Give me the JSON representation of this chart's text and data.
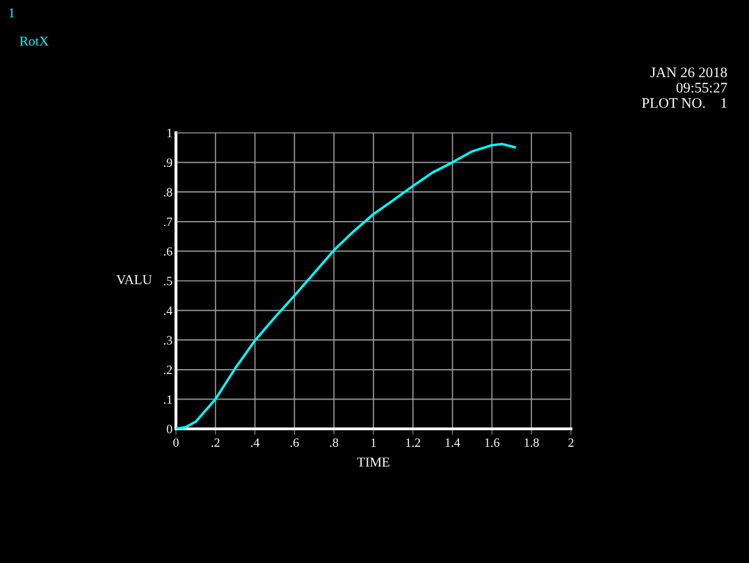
{
  "chart_data": {
    "type": "line",
    "xlabel": "TIME",
    "ylabel": "VALU",
    "x": [
      0,
      0.05,
      0.1,
      0.2,
      0.3,
      0.4,
      0.5,
      0.6,
      0.7,
      0.8,
      0.9,
      1.0,
      1.1,
      1.2,
      1.3,
      1.4,
      1.5,
      1.6,
      1.65,
      1.715
    ],
    "series": [
      {
        "name": "RotX",
        "color": "#00ffff",
        "values": [
          0,
          0.006,
          0.024,
          0.1,
          0.204,
          0.298,
          0.376,
          0.45,
          0.526,
          0.603,
          0.667,
          0.725,
          0.772,
          0.82,
          0.866,
          0.9,
          0.937,
          0.958,
          0.962,
          0.951
        ]
      }
    ],
    "xlim": [
      0,
      2
    ],
    "ylim": [
      0,
      1
    ],
    "xticks": [
      0,
      {
        "value": 0.2,
        "label": ".2"
      },
      {
        "value": 0.4,
        "label": ".4"
      },
      {
        "value": 0.6,
        "label": ".6"
      },
      {
        "value": 0.8,
        "label": ".8"
      },
      1,
      1.2,
      1.4,
      1.6,
      1.8,
      2
    ],
    "yticks": [
      0,
      {
        "value": 0.1,
        "label": ".1"
      },
      {
        "value": 0.2,
        "label": ".2"
      },
      {
        "value": 0.3,
        "label": ".3"
      },
      {
        "value": 0.4,
        "label": ".4"
      },
      {
        "value": 0.5,
        "label": ".5"
      },
      {
        "value": 0.6,
        "label": ".6"
      },
      {
        "value": 0.7,
        "label": ".7"
      },
      {
        "value": 0.8,
        "label": ".8"
      },
      {
        "value": 0.9,
        "label": ".9"
      },
      1
    ],
    "grid": true,
    "legend": "top left",
    "marker": "none",
    "line_style": "solid",
    "annotations": [
      "1",
      "JAN 26 2018",
      "09:55:27",
      "PLOT NO.    1"
    ]
  }
}
